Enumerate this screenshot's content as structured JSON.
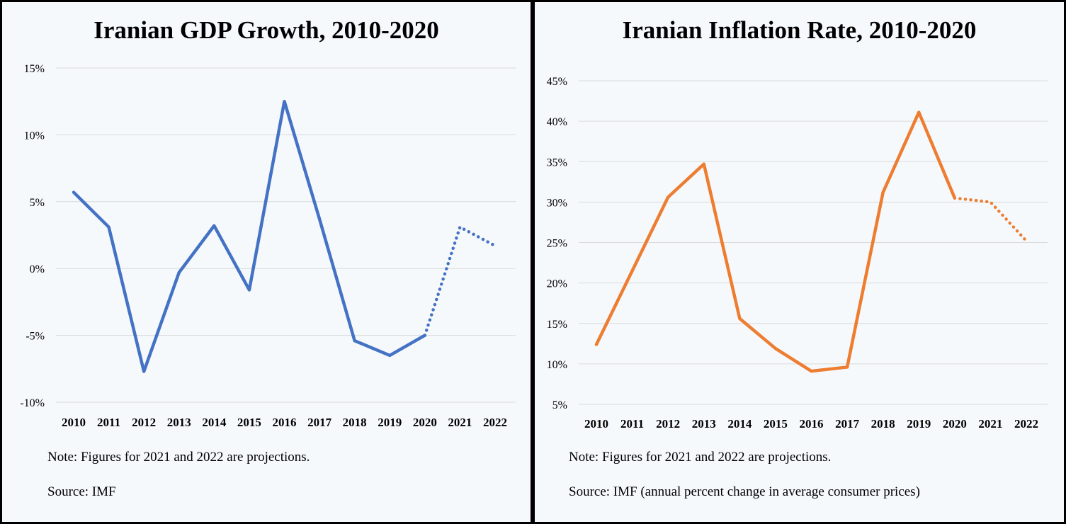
{
  "charts": [
    {
      "id": "gdp",
      "title": "Iranian GDP Growth, 2010-2020",
      "note": "Note: Figures for 2021 and 2022 are projections.",
      "source": "Source: IMF"
    },
    {
      "id": "inflation",
      "title": "Iranian Inflation Rate, 2010-2020",
      "note": "Note: Figures for 2021 and 2022 are projections.",
      "source": "Source: IMF (annual percent change in average consumer prices)"
    }
  ],
  "chart_data": [
    {
      "type": "line",
      "title": "Iranian GDP Growth, 2010-2020",
      "xlabel": "",
      "ylabel": "",
      "categories": [
        "2010",
        "2011",
        "2012",
        "2013",
        "2014",
        "2015",
        "2016",
        "2017",
        "2018",
        "2019",
        "2020",
        "2021",
        "2022"
      ],
      "series": [
        {
          "values": [
            5.7,
            3.1,
            -7.7,
            -0.3,
            3.2,
            -1.6,
            12.5,
            3.7,
            -5.4,
            -6.5,
            -5.0,
            3.1,
            1.7
          ],
          "color": "#4472c4",
          "projected_from": "2020"
        }
      ],
      "ylim": [
        -10,
        15
      ],
      "yticks": [
        15,
        10,
        5,
        0,
        -5,
        -10
      ],
      "ytick_labels": [
        "15%",
        "10%",
        "5%",
        "0%",
        "-5%",
        "-10%"
      ],
      "grid": true,
      "legend": "none"
    },
    {
      "type": "line",
      "title": "Iranian Inflation Rate, 2010-2020",
      "xlabel": "",
      "ylabel": "",
      "categories": [
        "2010",
        "2011",
        "2012",
        "2013",
        "2014",
        "2015",
        "2016",
        "2017",
        "2018",
        "2019",
        "2020",
        "2021",
        "2022"
      ],
      "series": [
        {
          "values": [
            12.4,
            21.5,
            30.6,
            34.7,
            15.6,
            11.9,
            9.1,
            9.6,
            31.2,
            41.1,
            30.5,
            30.0,
            25.2
          ],
          "color": "#ed7d31",
          "projected_from": "2020"
        }
      ],
      "ylim": [
        5,
        45
      ],
      "yticks": [
        45,
        40,
        35,
        30,
        25,
        20,
        15,
        10,
        5
      ],
      "ytick_labels": [
        "45%",
        "40%",
        "35%",
        "30%",
        "25%",
        "20%",
        "15%",
        "10%",
        "5%"
      ],
      "grid": true,
      "legend": "none"
    }
  ]
}
